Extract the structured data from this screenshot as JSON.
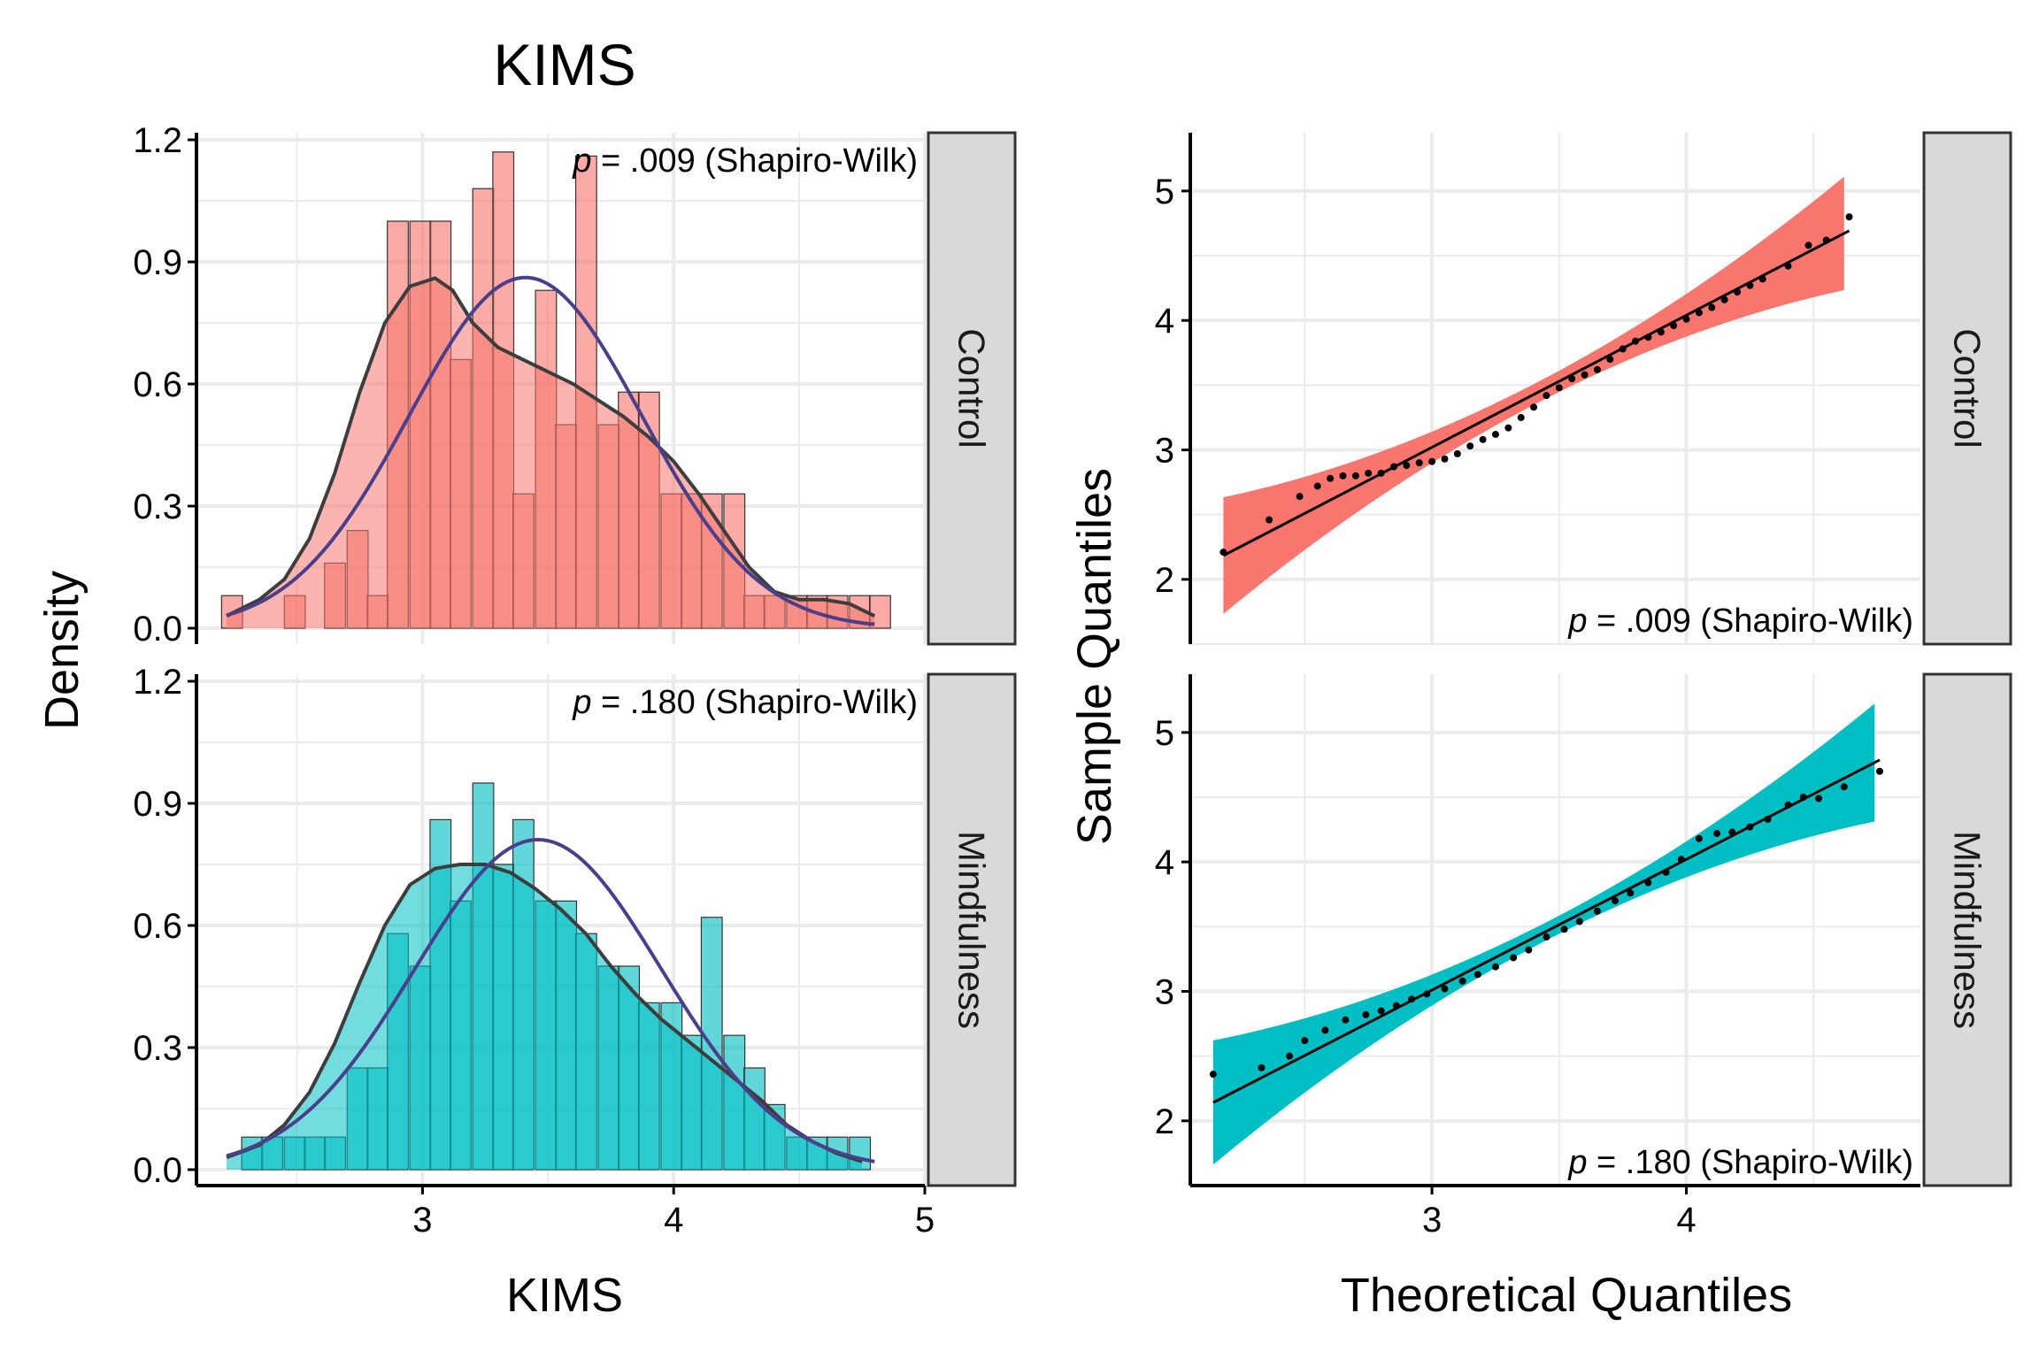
{
  "chart_data": [
    {
      "type": "bar",
      "subtype": "histogram-with-density",
      "title": "KIMS",
      "xlabel": "KIMS",
      "ylabel": "Density",
      "xlim": [
        2.1,
        5.0
      ],
      "x_ticks": [
        "3",
        "4",
        "5"
      ],
      "ylim": [
        0,
        1.2
      ],
      "y_ticks": [
        "0.0",
        "0.3",
        "0.6",
        "0.9",
        "1.2"
      ],
      "grid": true,
      "legend": "none",
      "bin_width": 0.0833,
      "facets": [
        {
          "strip_label": "Control",
          "annotation": {
            "p": "p",
            "text": " = .009 (Shapiro-Wilk)"
          },
          "fill_color": "#F8766D",
          "bins": [
            {
              "x0": 2.2,
              "y": 0.08
            },
            {
              "x0": 2.28,
              "y": 0.0
            },
            {
              "x0": 2.36,
              "y": 0.0
            },
            {
              "x0": 2.45,
              "y": 0.08
            },
            {
              "x0": 2.53,
              "y": 0.0
            },
            {
              "x0": 2.61,
              "y": 0.16
            },
            {
              "x0": 2.7,
              "y": 0.24
            },
            {
              "x0": 2.78,
              "y": 0.08
            },
            {
              "x0": 2.86,
              "y": 1.0
            },
            {
              "x0": 2.95,
              "y": 1.0
            },
            {
              "x0": 3.03,
              "y": 1.0
            },
            {
              "x0": 3.11,
              "y": 0.66
            },
            {
              "x0": 3.2,
              "y": 1.08
            },
            {
              "x0": 3.28,
              "y": 1.17
            },
            {
              "x0": 3.36,
              "y": 0.33
            },
            {
              "x0": 3.45,
              "y": 0.83
            },
            {
              "x0": 3.53,
              "y": 0.5
            },
            {
              "x0": 3.61,
              "y": 1.16
            },
            {
              "x0": 3.7,
              "y": 0.5
            },
            {
              "x0": 3.78,
              "y": 0.58
            },
            {
              "x0": 3.86,
              "y": 0.58
            },
            {
              "x0": 3.95,
              "y": 0.33
            },
            {
              "x0": 4.03,
              "y": 0.33
            },
            {
              "x0": 4.11,
              "y": 0.33
            },
            {
              "x0": 4.2,
              "y": 0.33
            },
            {
              "x0": 4.28,
              "y": 0.08
            },
            {
              "x0": 4.36,
              "y": 0.08
            },
            {
              "x0": 4.45,
              "y": 0.08
            },
            {
              "x0": 4.53,
              "y": 0.08
            },
            {
              "x0": 4.61,
              "y": 0.08
            },
            {
              "x0": 4.7,
              "y": 0.08
            },
            {
              "x0": 4.78,
              "y": 0.08
            }
          ],
          "kde": {
            "x": [
              2.22,
              2.35,
              2.45,
              2.55,
              2.65,
              2.75,
              2.85,
              2.95,
              3.05,
              3.12,
              3.2,
              3.3,
              3.4,
              3.5,
              3.6,
              3.7,
              3.8,
              3.9,
              4.0,
              4.1,
              4.2,
              4.3,
              4.4,
              4.5,
              4.6,
              4.7,
              4.8
            ],
            "y": [
              0.03,
              0.07,
              0.12,
              0.22,
              0.38,
              0.58,
              0.75,
              0.84,
              0.86,
              0.83,
              0.75,
              0.69,
              0.66,
              0.63,
              0.6,
              0.56,
              0.52,
              0.47,
              0.41,
              0.33,
              0.24,
              0.15,
              0.09,
              0.07,
              0.07,
              0.06,
              0.03
            ]
          },
          "normal": {
            "mean": 3.41,
            "sd": 0.463
          }
        },
        {
          "strip_label": "Mindfulness",
          "annotation": {
            "p": "p",
            "text": " = .180 (Shapiro-Wilk)"
          },
          "fill_color": "#00BFC4",
          "bins": [
            {
              "x0": 2.2,
              "y": 0.0
            },
            {
              "x0": 2.28,
              "y": 0.08
            },
            {
              "x0": 2.36,
              "y": 0.08
            },
            {
              "x0": 2.45,
              "y": 0.08
            },
            {
              "x0": 2.53,
              "y": 0.08
            },
            {
              "x0": 2.61,
              "y": 0.08
            },
            {
              "x0": 2.7,
              "y": 0.25
            },
            {
              "x0": 2.78,
              "y": 0.25
            },
            {
              "x0": 2.86,
              "y": 0.58
            },
            {
              "x0": 2.95,
              "y": 0.5
            },
            {
              "x0": 3.03,
              "y": 0.86
            },
            {
              "x0": 3.11,
              "y": 0.66
            },
            {
              "x0": 3.2,
              "y": 0.95
            },
            {
              "x0": 3.28,
              "y": 0.75
            },
            {
              "x0": 3.36,
              "y": 0.86
            },
            {
              "x0": 3.45,
              "y": 0.66
            },
            {
              "x0": 3.53,
              "y": 0.66
            },
            {
              "x0": 3.61,
              "y": 0.58
            },
            {
              "x0": 3.7,
              "y": 0.5
            },
            {
              "x0": 3.78,
              "y": 0.5
            },
            {
              "x0": 3.86,
              "y": 0.41
            },
            {
              "x0": 3.95,
              "y": 0.41
            },
            {
              "x0": 4.03,
              "y": 0.33
            },
            {
              "x0": 4.11,
              "y": 0.62
            },
            {
              "x0": 4.2,
              "y": 0.33
            },
            {
              "x0": 4.28,
              "y": 0.25
            },
            {
              "x0": 4.36,
              "y": 0.16
            },
            {
              "x0": 4.45,
              "y": 0.08
            },
            {
              "x0": 4.53,
              "y": 0.08
            },
            {
              "x0": 4.61,
              "y": 0.08
            },
            {
              "x0": 4.7,
              "y": 0.08
            }
          ],
          "kde": {
            "x": [
              2.22,
              2.35,
              2.45,
              2.55,
              2.65,
              2.75,
              2.85,
              2.95,
              3.05,
              3.15,
              3.25,
              3.35,
              3.45,
              3.55,
              3.65,
              3.75,
              3.85,
              3.95,
              4.05,
              4.15,
              4.25,
              4.35,
              4.45,
              4.55,
              4.65,
              4.75
            ],
            "y": [
              0.03,
              0.06,
              0.11,
              0.19,
              0.31,
              0.46,
              0.6,
              0.7,
              0.74,
              0.75,
              0.75,
              0.73,
              0.69,
              0.64,
              0.58,
              0.5,
              0.43,
              0.37,
              0.32,
              0.27,
              0.22,
              0.17,
              0.11,
              0.07,
              0.04,
              0.02
            ]
          },
          "normal": {
            "mean": 3.46,
            "sd": 0.492
          }
        }
      ]
    },
    {
      "type": "scatter",
      "subtype": "qq-plot",
      "xlabel": "Theoretical Quantiles",
      "ylabel": "Sample Quantiles",
      "xlim": [
        2.05,
        4.92
      ],
      "x_ticks": [
        "3",
        "4"
      ],
      "ylim": [
        1.5,
        5.45
      ],
      "y_ticks": [
        "2",
        "3",
        "4",
        "5"
      ],
      "grid": true,
      "legend": "none",
      "facets": [
        {
          "strip_label": "Control",
          "annotation": {
            "p": "p",
            "text": " = .009 (Shapiro-Wilk)"
          },
          "band_color": "#F8766D",
          "x_range": [
            2.18,
            4.64
          ],
          "line": {
            "intercept": -0.04,
            "slope": 1.02
          },
          "band_halfwidth_ends": 0.45,
          "band_halfwidth_center": 0.08,
          "band_center": 3.41,
          "points": [
            [
              2.18,
              2.21
            ],
            [
              2.36,
              2.46
            ],
            [
              2.48,
              2.64
            ],
            [
              2.55,
              2.72
            ],
            [
              2.6,
              2.78
            ],
            [
              2.65,
              2.8
            ],
            [
              2.7,
              2.8
            ],
            [
              2.75,
              2.82
            ],
            [
              2.8,
              2.82
            ],
            [
              2.85,
              2.87
            ],
            [
              2.9,
              2.88
            ],
            [
              2.95,
              2.9
            ],
            [
              3.0,
              2.91
            ],
            [
              3.05,
              2.93
            ],
            [
              3.1,
              2.97
            ],
            [
              3.15,
              3.03
            ],
            [
              3.2,
              3.08
            ],
            [
              3.25,
              3.12
            ],
            [
              3.3,
              3.17
            ],
            [
              3.35,
              3.25
            ],
            [
              3.4,
              3.33
            ],
            [
              3.45,
              3.42
            ],
            [
              3.5,
              3.48
            ],
            [
              3.55,
              3.55
            ],
            [
              3.6,
              3.58
            ],
            [
              3.65,
              3.62
            ],
            [
              3.7,
              3.7
            ],
            [
              3.75,
              3.78
            ],
            [
              3.8,
              3.84
            ],
            [
              3.85,
              3.87
            ],
            [
              3.9,
              3.91
            ],
            [
              3.95,
              3.96
            ],
            [
              4.0,
              4.01
            ],
            [
              4.05,
              4.06
            ],
            [
              4.1,
              4.1
            ],
            [
              4.15,
              4.16
            ],
            [
              4.2,
              4.22
            ],
            [
              4.25,
              4.27
            ],
            [
              4.3,
              4.32
            ],
            [
              4.4,
              4.42
            ],
            [
              4.48,
              4.58
            ],
            [
              4.55,
              4.62
            ],
            [
              4.64,
              4.8
            ]
          ]
        },
        {
          "strip_label": "Mindfulness",
          "annotation": {
            "p": "p",
            "text": " = .180 (Shapiro-Wilk)"
          },
          "band_color": "#00BFC4",
          "x_range": [
            2.14,
            4.76
          ],
          "line": {
            "intercept": -0.02,
            "slope": 1.01
          },
          "band_halfwidth_ends": 0.48,
          "band_halfwidth_center": 0.07,
          "band_center": 3.46,
          "points": [
            [
              2.14,
              2.36
            ],
            [
              2.33,
              2.41
            ],
            [
              2.44,
              2.5
            ],
            [
              2.5,
              2.62
            ],
            [
              2.58,
              2.7
            ],
            [
              2.66,
              2.78
            ],
            [
              2.74,
              2.82
            ],
            [
              2.8,
              2.85
            ],
            [
              2.86,
              2.89
            ],
            [
              2.92,
              2.94
            ],
            [
              2.98,
              2.98
            ],
            [
              3.05,
              3.02
            ],
            [
              3.12,
              3.08
            ],
            [
              3.18,
              3.13
            ],
            [
              3.25,
              3.19
            ],
            [
              3.32,
              3.26
            ],
            [
              3.38,
              3.32
            ],
            [
              3.45,
              3.42
            ],
            [
              3.52,
              3.48
            ],
            [
              3.58,
              3.54
            ],
            [
              3.65,
              3.62
            ],
            [
              3.72,
              3.7
            ],
            [
              3.78,
              3.76
            ],
            [
              3.85,
              3.84
            ],
            [
              3.92,
              3.92
            ],
            [
              3.98,
              4.02
            ],
            [
              4.05,
              4.18
            ],
            [
              4.12,
              4.22
            ],
            [
              4.18,
              4.23
            ],
            [
              4.25,
              4.27
            ],
            [
              4.32,
              4.33
            ],
            [
              4.4,
              4.44
            ],
            [
              4.46,
              4.5
            ],
            [
              4.52,
              4.49
            ],
            [
              4.62,
              4.58
            ],
            [
              4.76,
              4.7
            ]
          ]
        }
      ]
    }
  ]
}
